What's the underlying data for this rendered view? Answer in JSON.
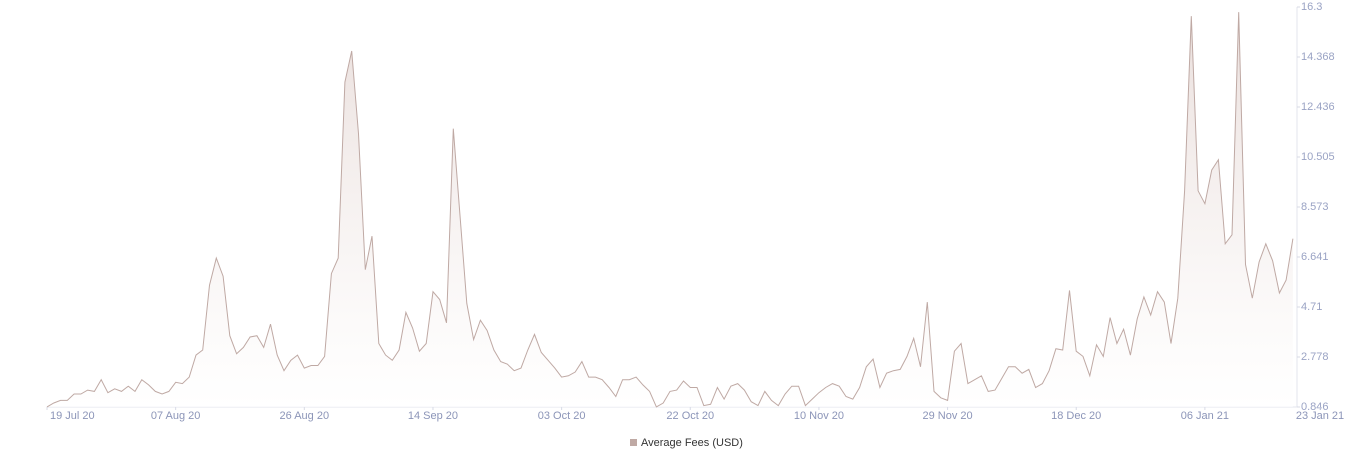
{
  "chart_data": {
    "type": "area",
    "x": [
      "2020-07-19",
      "2020-07-20",
      "2020-07-21",
      "2020-07-22",
      "2020-07-23",
      "2020-07-24",
      "2020-07-25",
      "2020-07-26",
      "2020-07-27",
      "2020-07-28",
      "2020-07-29",
      "2020-07-30",
      "2020-07-31",
      "2020-08-01",
      "2020-08-02",
      "2020-08-03",
      "2020-08-04",
      "2020-08-05",
      "2020-08-06",
      "2020-08-07",
      "2020-08-08",
      "2020-08-09",
      "2020-08-10",
      "2020-08-11",
      "2020-08-12",
      "2020-08-13",
      "2020-08-14",
      "2020-08-15",
      "2020-08-16",
      "2020-08-17",
      "2020-08-18",
      "2020-08-19",
      "2020-08-20",
      "2020-08-21",
      "2020-08-22",
      "2020-08-23",
      "2020-08-24",
      "2020-08-25",
      "2020-08-26",
      "2020-08-27",
      "2020-08-28",
      "2020-08-29",
      "2020-08-30",
      "2020-08-31",
      "2020-09-01",
      "2020-09-02",
      "2020-09-03",
      "2020-09-04",
      "2020-09-05",
      "2020-09-06",
      "2020-09-07",
      "2020-09-08",
      "2020-09-09",
      "2020-09-10",
      "2020-09-11",
      "2020-09-12",
      "2020-09-13",
      "2020-09-14",
      "2020-09-15",
      "2020-09-16",
      "2020-09-17",
      "2020-09-18",
      "2020-09-19",
      "2020-09-20",
      "2020-09-21",
      "2020-09-22",
      "2020-09-23",
      "2020-09-24",
      "2020-09-25",
      "2020-09-26",
      "2020-09-27",
      "2020-09-28",
      "2020-09-29",
      "2020-09-30",
      "2020-10-01",
      "2020-10-02",
      "2020-10-03",
      "2020-10-04",
      "2020-10-05",
      "2020-10-06",
      "2020-10-07",
      "2020-10-08",
      "2020-10-09",
      "2020-10-10",
      "2020-10-11",
      "2020-10-12",
      "2020-10-13",
      "2020-10-14",
      "2020-10-15",
      "2020-10-16",
      "2020-10-17",
      "2020-10-18",
      "2020-10-19",
      "2020-10-20",
      "2020-10-21",
      "2020-10-22",
      "2020-10-23",
      "2020-10-24",
      "2020-10-25",
      "2020-10-26",
      "2020-10-27",
      "2020-10-28",
      "2020-10-29",
      "2020-10-30",
      "2020-10-31",
      "2020-11-01",
      "2020-11-02",
      "2020-11-03",
      "2020-11-04",
      "2020-11-05",
      "2020-11-06",
      "2020-11-07",
      "2020-11-08",
      "2020-11-09",
      "2020-11-10",
      "2020-11-11",
      "2020-11-12",
      "2020-11-13",
      "2020-11-14",
      "2020-11-15",
      "2020-11-16",
      "2020-11-17",
      "2020-11-18",
      "2020-11-19",
      "2020-11-20",
      "2020-11-21",
      "2020-11-22",
      "2020-11-23",
      "2020-11-24",
      "2020-11-25",
      "2020-11-26",
      "2020-11-27",
      "2020-11-28",
      "2020-11-29",
      "2020-11-30",
      "2020-12-01",
      "2020-12-02",
      "2020-12-03",
      "2020-12-04",
      "2020-12-05",
      "2020-12-06",
      "2020-12-07",
      "2020-12-08",
      "2020-12-09",
      "2020-12-10",
      "2020-12-11",
      "2020-12-12",
      "2020-12-13",
      "2020-12-14",
      "2020-12-15",
      "2020-12-16",
      "2020-12-17",
      "2020-12-18",
      "2020-12-19",
      "2020-12-20",
      "2020-12-21",
      "2020-12-22",
      "2020-12-23",
      "2020-12-24",
      "2020-12-25",
      "2020-12-26",
      "2020-12-27",
      "2020-12-28",
      "2020-12-29",
      "2020-12-30",
      "2020-12-31",
      "2021-01-01",
      "2021-01-02",
      "2021-01-03",
      "2021-01-04",
      "2021-01-05",
      "2021-01-06",
      "2021-01-07",
      "2021-01-08",
      "2021-01-09",
      "2021-01-10",
      "2021-01-11",
      "2021-01-12",
      "2021-01-13",
      "2021-01-14",
      "2021-01-15",
      "2021-01-16",
      "2021-01-17",
      "2021-01-18",
      "2021-01-19"
    ],
    "series": [
      {
        "name": "Average Fees (USD)",
        "color": "#bfa9a4",
        "values": [
          0.85,
          1.0,
          1.1,
          1.1,
          1.35,
          1.35,
          1.5,
          1.45,
          1.9,
          1.4,
          1.55,
          1.45,
          1.65,
          1.45,
          1.9,
          1.7,
          1.45,
          1.35,
          1.45,
          1.8,
          1.75,
          2.0,
          2.85,
          3.05,
          5.55,
          6.6,
          5.9,
          3.6,
          2.9,
          3.15,
          3.55,
          3.6,
          3.15,
          4.05,
          2.85,
          2.25,
          2.65,
          2.85,
          2.35,
          2.45,
          2.45,
          2.8,
          6.0,
          6.6,
          13.4,
          14.6,
          11.4,
          6.15,
          7.45,
          3.3,
          2.85,
          2.65,
          3.05,
          4.5,
          3.9,
          3.0,
          3.3,
          5.3,
          5.0,
          4.1,
          11.6,
          8.25,
          4.85,
          3.45,
          4.2,
          3.8,
          3.05,
          2.6,
          2.5,
          2.25,
          2.35,
          3.05,
          3.65,
          2.95,
          2.65,
          2.35,
          2.0,
          2.05,
          2.2,
          2.6,
          2.0,
          2.0,
          1.9,
          1.6,
          1.25,
          1.9,
          1.9,
          2.0,
          1.7,
          1.45,
          0.85,
          1.0,
          1.45,
          1.5,
          1.85,
          1.6,
          1.6,
          0.9,
          0.95,
          1.6,
          1.15,
          1.65,
          1.75,
          1.5,
          1.05,
          0.9,
          1.45,
          1.1,
          0.9,
          1.35,
          1.65,
          1.65,
          0.9,
          1.15,
          1.4,
          1.6,
          1.75,
          1.65,
          1.25,
          1.15,
          1.6,
          2.4,
          2.7,
          1.6,
          2.15,
          2.25,
          2.3,
          2.8,
          3.5,
          2.4,
          4.9,
          1.45,
          1.2,
          1.1,
          3.0,
          3.3,
          1.75,
          1.9,
          2.05,
          1.45,
          1.5,
          1.95,
          2.4,
          2.4,
          2.15,
          2.3,
          1.6,
          1.75,
          2.25,
          3.1,
          3.05,
          5.35,
          3.0,
          2.8,
          2.05,
          3.25,
          2.8,
          4.3,
          3.3,
          3.85,
          2.85,
          4.25,
          5.1,
          4.4,
          5.3,
          4.9,
          3.3,
          5.05,
          9.2,
          15.95,
          9.2,
          8.7,
          10.0,
          10.4,
          7.15,
          7.5,
          16.1,
          6.35,
          5.05,
          6.45,
          7.15,
          6.5,
          5.25,
          5.75,
          7.35
        ]
      }
    ],
    "xlim": [
      "2020-07-19",
      "2021-01-23"
    ],
    "xticks": [
      {
        "value": "2020-07-19",
        "label": "19 Jul 20"
      },
      {
        "value": "2020-08-07",
        "label": "07 Aug 20"
      },
      {
        "value": "2020-08-26",
        "label": "26 Aug 20"
      },
      {
        "value": "2020-09-14",
        "label": "14 Sep 20"
      },
      {
        "value": "2020-10-03",
        "label": "03 Oct 20"
      },
      {
        "value": "2020-10-22",
        "label": "22 Oct 20"
      },
      {
        "value": "2020-11-10",
        "label": "10 Nov 20"
      },
      {
        "value": "2020-11-29",
        "label": "29 Nov 20"
      },
      {
        "value": "2020-12-18",
        "label": "18 Dec 20"
      },
      {
        "value": "2021-01-06",
        "label": "06 Jan 21"
      },
      {
        "value": "2021-01-23",
        "label": "23 Jan 21"
      }
    ],
    "ylim": [
      0.846,
      16.3
    ],
    "yticks": [
      0.846,
      2.778,
      4.71,
      6.641,
      8.573,
      10.505,
      12.436,
      14.368,
      16.3
    ],
    "y_axis_side": "right",
    "grid": false,
    "legend": "bottom"
  }
}
